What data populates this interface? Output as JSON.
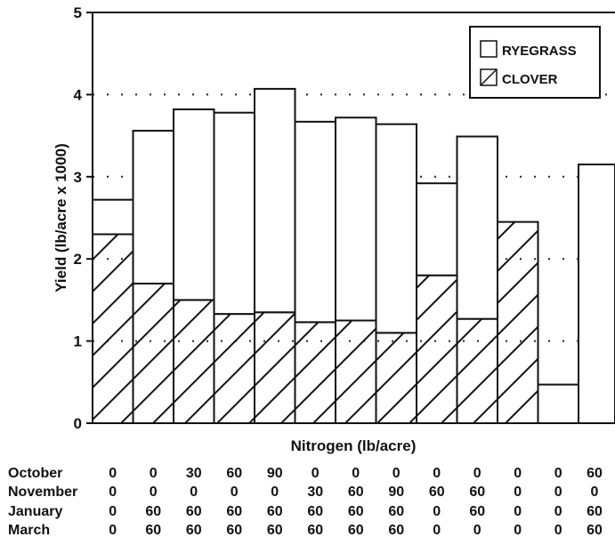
{
  "chart_data": {
    "type": "bar",
    "stacked": true,
    "title": "",
    "xlabel": "Nitrogen (lb/acre)",
    "ylabel": "Yield (lb/acre x 1000)",
    "ylim": [
      0,
      5
    ],
    "yticks": [
      "0",
      "1",
      "2",
      "3",
      "4",
      "5"
    ],
    "grid": "dotted-horizontal",
    "legend_placement": "top-right",
    "series": [
      {
        "name": "CLOVER",
        "pattern": "hatched",
        "values": [
          2.3,
          1.7,
          1.5,
          1.33,
          1.35,
          1.23,
          1.25,
          1.1,
          1.8,
          1.27,
          2.45,
          0,
          0
        ]
      },
      {
        "name": "RYEGRASS",
        "pattern": "open",
        "values": [
          0.42,
          1.86,
          2.32,
          2.45,
          2.72,
          2.44,
          2.47,
          2.54,
          1.12,
          2.22,
          0,
          0.47,
          3.15
        ]
      }
    ],
    "treatment_table": {
      "rows": [
        {
          "label": "October",
          "values": [
            "0",
            "0",
            "30",
            "60",
            "90",
            "0",
            "0",
            "0",
            "0",
            "0",
            "0",
            "0",
            "60"
          ]
        },
        {
          "label": "November",
          "values": [
            "0",
            "0",
            "0",
            "0",
            "0",
            "30",
            "60",
            "90",
            "60",
            "60",
            "0",
            "0",
            "0"
          ]
        },
        {
          "label": "January",
          "values": [
            "0",
            "60",
            "60",
            "60",
            "60",
            "60",
            "60",
            "60",
            "0",
            "60",
            "0",
            "0",
            "60"
          ]
        },
        {
          "label": "March",
          "values": [
            "0",
            "60",
            "60",
            "60",
            "60",
            "60",
            "60",
            "60",
            "0",
            "0",
            "0",
            "0",
            "60"
          ]
        }
      ]
    }
  }
}
